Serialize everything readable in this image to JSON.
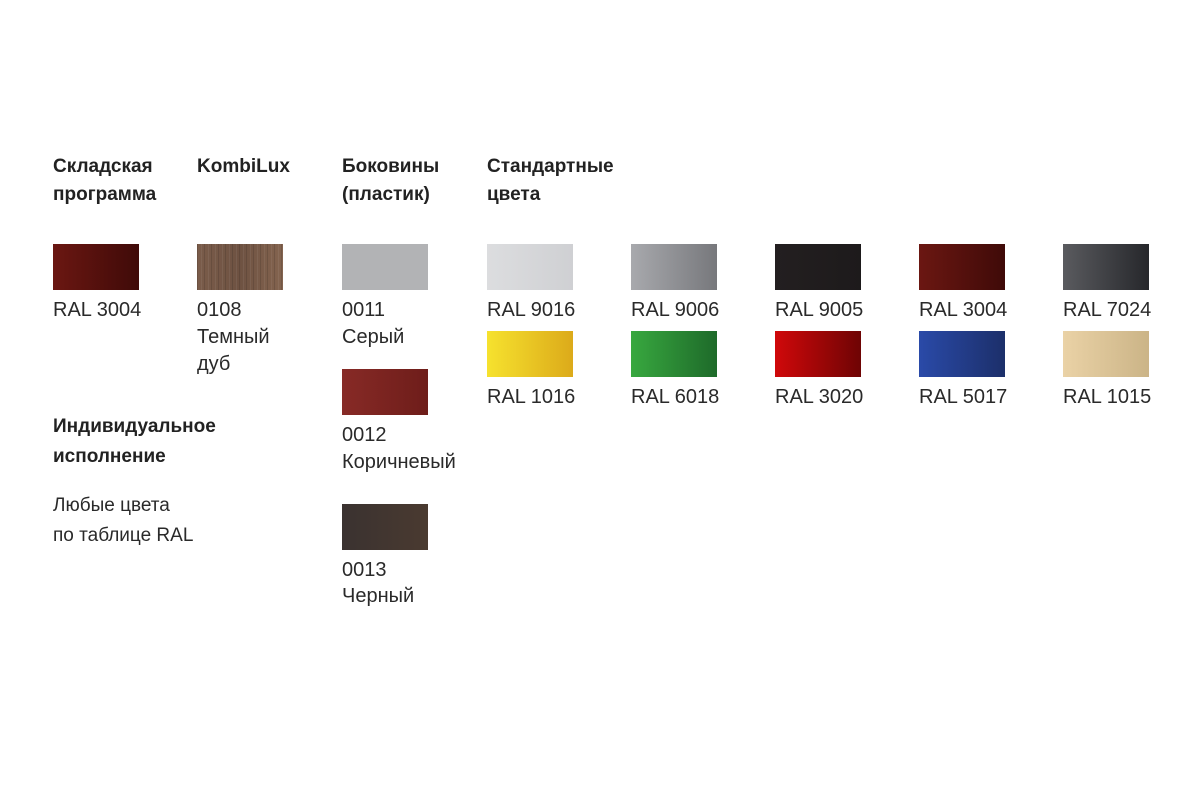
{
  "headers": {
    "warehouse": [
      "Складская",
      "программа"
    ],
    "kombilux": "KombiLux",
    "sides": [
      "Боковины",
      "(пластик)"
    ],
    "standard": [
      "Стандартные",
      "цвета"
    ],
    "individual": [
      "Индивидуальное",
      "исполнение"
    ]
  },
  "individual_text": [
    "Любые цвета",
    "по таблице RAL"
  ],
  "warehouse": {
    "code": "RAL 3004",
    "colors": [
      "#6b1712",
      "#3f0a08"
    ]
  },
  "kombilux": {
    "code": "0108",
    "name": [
      "Темный",
      "дуб"
    ],
    "pattern": "wood",
    "colors": [
      "#7a5c4a",
      "#84644f"
    ]
  },
  "sides": [
    {
      "code": "0011",
      "name": "Серый",
      "colors": [
        "#b2b3b5",
        "#b2b3b5"
      ]
    },
    {
      "code": "0012",
      "name": "Коричневый",
      "colors": [
        "#872a26",
        "#6e1d1a"
      ]
    },
    {
      "code": "0013",
      "name": "Черный",
      "colors": [
        "#3a3230",
        "#4a3a30"
      ]
    }
  ],
  "standard": [
    {
      "code": "RAL 9016",
      "colors": [
        "#dcdddf",
        "#cfd0d3"
      ]
    },
    {
      "code": "RAL 9006",
      "colors": [
        "#a8a9ad",
        "#77787c"
      ]
    },
    {
      "code": "RAL 9005",
      "colors": [
        "#231f20",
        "#1d1a1b"
      ]
    },
    {
      "code": "RAL 3004",
      "colors": [
        "#6b1712",
        "#3f0a08"
      ]
    },
    {
      "code": "RAL 7024",
      "colors": [
        "#5a5b5f",
        "#26272b"
      ]
    },
    {
      "code": "RAL 1016",
      "colors": [
        "#f6e22e",
        "#dcaa1a"
      ]
    },
    {
      "code": "RAL 6018",
      "colors": [
        "#38a83f",
        "#1e6a2a"
      ]
    },
    {
      "code": "RAL 3020",
      "colors": [
        "#d0080a",
        "#6e0404"
      ]
    },
    {
      "code": "RAL 5017",
      "colors": [
        "#2a4aa8",
        "#1c2f6a"
      ]
    },
    {
      "code": "RAL 1015",
      "colors": [
        "#ead2a6",
        "#cbb487"
      ]
    }
  ]
}
